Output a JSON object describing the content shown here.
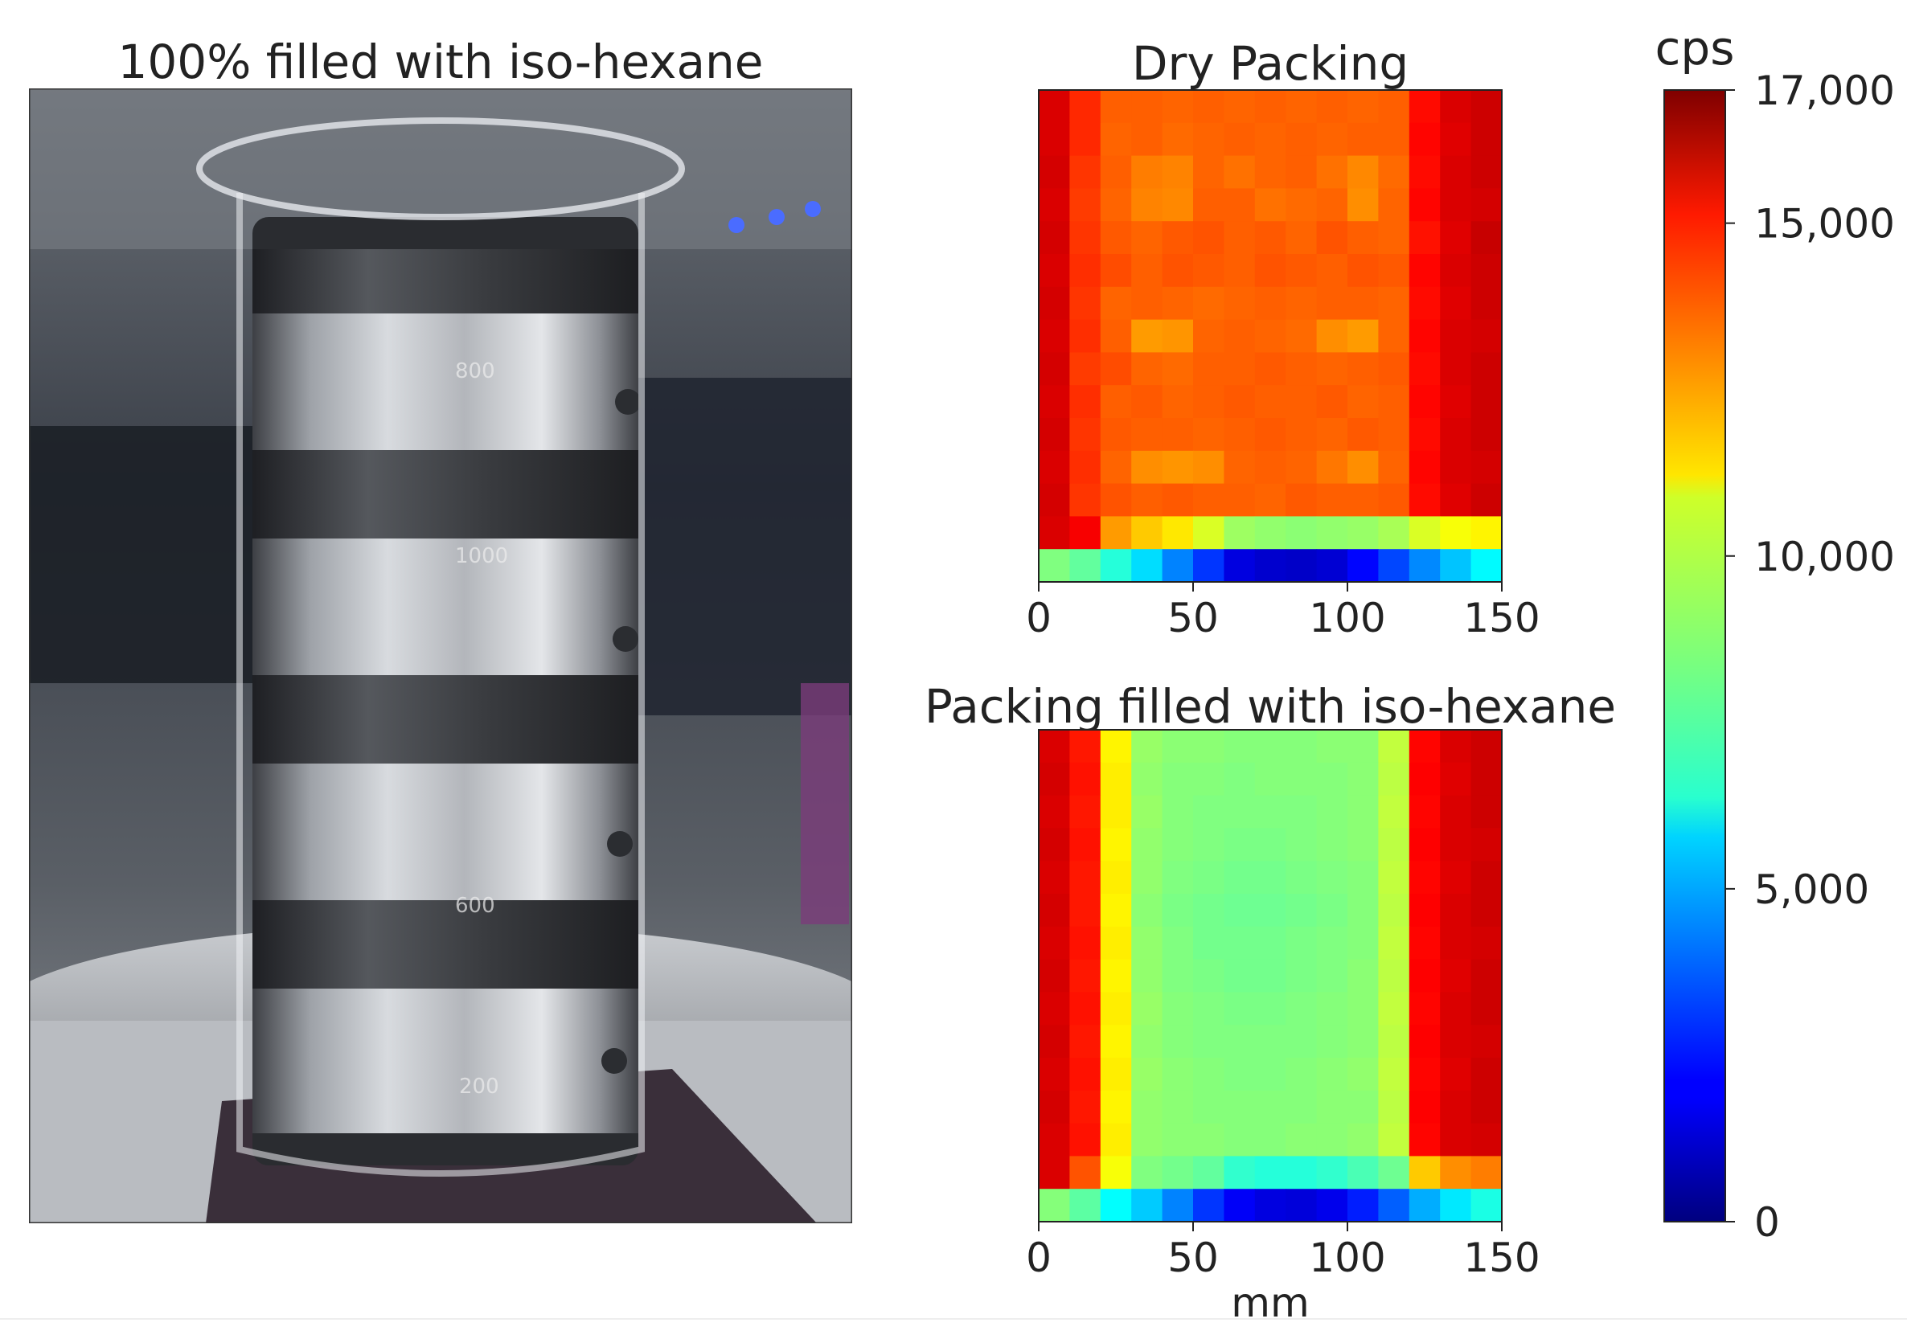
{
  "photo": {
    "title": "100% filled with iso-hexane",
    "beaker_marks": [
      "800",
      "1000",
      "600",
      "200"
    ]
  },
  "chart_data": [
    {
      "type": "heatmap",
      "title": "Dry Packing",
      "xlabel": "",
      "xlim": [
        0,
        150
      ],
      "xticks": [
        0,
        50,
        100,
        150
      ],
      "cell_size_mm": 10,
      "value_range": [
        0,
        17000
      ],
      "rows": [
        [
          15500,
          14200,
          13300,
          13300,
          13200,
          13300,
          13200,
          13300,
          13200,
          13300,
          13200,
          13300,
          14700,
          15500,
          15700
        ],
        [
          15500,
          14200,
          13200,
          13300,
          13100,
          13200,
          13300,
          13200,
          13300,
          13200,
          13300,
          13300,
          14800,
          15400,
          15700
        ],
        [
          15600,
          14000,
          13300,
          12800,
          12700,
          13200,
          13000,
          13200,
          13300,
          13000,
          12600,
          13100,
          14700,
          15500,
          15700
        ],
        [
          15500,
          13900,
          13200,
          12700,
          12600,
          13300,
          13300,
          13000,
          13100,
          13200,
          12500,
          13200,
          14800,
          15500,
          15600
        ],
        [
          15600,
          14000,
          13400,
          13200,
          13400,
          13500,
          13300,
          13400,
          13200,
          13500,
          13300,
          13200,
          14600,
          15400,
          15800
        ],
        [
          15500,
          14100,
          13600,
          13300,
          13500,
          13400,
          13300,
          13500,
          13400,
          13300,
          13500,
          13400,
          14800,
          15500,
          15700
        ],
        [
          15600,
          14000,
          13200,
          13300,
          13200,
          13100,
          13200,
          13300,
          13200,
          13300,
          13300,
          13200,
          14700,
          15400,
          15700
        ],
        [
          15500,
          14100,
          13300,
          12300,
          12400,
          13200,
          13300,
          13200,
          13100,
          12500,
          12300,
          13200,
          14800,
          15500,
          15600
        ],
        [
          15600,
          13900,
          13600,
          13200,
          13100,
          13300,
          13300,
          13400,
          13300,
          13200,
          13300,
          13400,
          14700,
          15500,
          15700
        ],
        [
          15500,
          14100,
          13300,
          13400,
          13200,
          13300,
          13400,
          13300,
          13300,
          13400,
          13200,
          13300,
          14800,
          15400,
          15700
        ],
        [
          15600,
          14000,
          13400,
          13300,
          13300,
          13200,
          13300,
          13400,
          13300,
          13200,
          13400,
          13300,
          14700,
          15500,
          15700
        ],
        [
          15500,
          14100,
          13200,
          12500,
          12400,
          12500,
          13200,
          13300,
          13200,
          12900,
          12500,
          13200,
          14800,
          15500,
          15600
        ],
        [
          15600,
          14000,
          13500,
          13300,
          13400,
          13300,
          13300,
          13200,
          13400,
          13300,
          13300,
          13400,
          14700,
          15400,
          15700
        ],
        [
          15500,
          15000,
          12300,
          11500,
          11000,
          10000,
          9000,
          8800,
          8700,
          8800,
          8900,
          9200,
          10000,
          10500,
          10800
        ],
        [
          8500,
          8000,
          7000,
          5800,
          4300,
          3000,
          1600,
          1300,
          1200,
          1400,
          2200,
          3300,
          4400,
          5400,
          6300
        ]
      ]
    },
    {
      "type": "heatmap",
      "title": "Packing filled with iso-hexane",
      "xlabel": "mm",
      "xlim": [
        0,
        150
      ],
      "xticks": [
        0,
        50,
        100,
        150
      ],
      "cell_size_mm": 10,
      "value_range": [
        0,
        17000
      ],
      "rows": [
        [
          15500,
          14500,
          10800,
          8900,
          8700,
          8700,
          8600,
          8600,
          8600,
          8700,
          8700,
          9600,
          14800,
          15500,
          15700
        ],
        [
          15600,
          14600,
          10900,
          8800,
          8600,
          8600,
          8500,
          8600,
          8600,
          8600,
          8700,
          9500,
          14900,
          15400,
          15700
        ],
        [
          15500,
          14500,
          10900,
          8900,
          8600,
          8500,
          8500,
          8500,
          8500,
          8600,
          8700,
          9600,
          14800,
          15500,
          15700
        ],
        [
          15600,
          14600,
          10800,
          8800,
          8600,
          8500,
          8400,
          8400,
          8500,
          8600,
          8700,
          9500,
          14900,
          15500,
          15600
        ],
        [
          15500,
          14500,
          10900,
          8800,
          8500,
          8400,
          8300,
          8300,
          8400,
          8500,
          8600,
          9600,
          14800,
          15400,
          15700
        ],
        [
          15600,
          14500,
          10800,
          8700,
          8400,
          8300,
          8200,
          8200,
          8300,
          8400,
          8600,
          9500,
          14900,
          15500,
          15700
        ],
        [
          15500,
          14600,
          10900,
          8800,
          8500,
          8300,
          8300,
          8300,
          8400,
          8500,
          8600,
          9600,
          14800,
          15500,
          15600
        ],
        [
          15600,
          14500,
          10800,
          8800,
          8500,
          8400,
          8300,
          8300,
          8400,
          8500,
          8700,
          9500,
          14900,
          15400,
          15700
        ],
        [
          15500,
          14600,
          10900,
          8900,
          8600,
          8500,
          8400,
          8400,
          8500,
          8600,
          8700,
          9600,
          14800,
          15500,
          15700
        ],
        [
          15600,
          14500,
          10800,
          8800,
          8600,
          8500,
          8500,
          8500,
          8500,
          8600,
          8700,
          9500,
          14900,
          15500,
          15600
        ],
        [
          15500,
          14600,
          10900,
          8900,
          8700,
          8600,
          8500,
          8500,
          8600,
          8700,
          8800,
          9600,
          14800,
          15400,
          15700
        ],
        [
          15600,
          14500,
          10800,
          8800,
          8700,
          8600,
          8600,
          8600,
          8600,
          8700,
          8700,
          9500,
          14900,
          15500,
          15700
        ],
        [
          15500,
          14600,
          10900,
          8800,
          8700,
          8700,
          8600,
          8600,
          8700,
          8700,
          8800,
          9600,
          14800,
          15500,
          15600
        ],
        [
          15500,
          13500,
          10500,
          8500,
          8300,
          8000,
          7200,
          7000,
          7000,
          7200,
          7600,
          8200,
          11500,
          12500,
          12800
        ],
        [
          8600,
          7900,
          6400,
          5500,
          4300,
          3000,
          2000,
          1600,
          1500,
          1800,
          2600,
          3700,
          5000,
          6000,
          6800
        ]
      ]
    }
  ],
  "colorbar": {
    "title": "cps",
    "min": 0,
    "max": 17000,
    "ticks": [
      {
        "value": 0,
        "label": "0"
      },
      {
        "value": 5000,
        "label": "5,000"
      },
      {
        "value": 10000,
        "label": "10,000"
      },
      {
        "value": 15000,
        "label": "15,000"
      },
      {
        "value": 17000,
        "label": "17,000"
      }
    ],
    "colormap": "jet"
  }
}
